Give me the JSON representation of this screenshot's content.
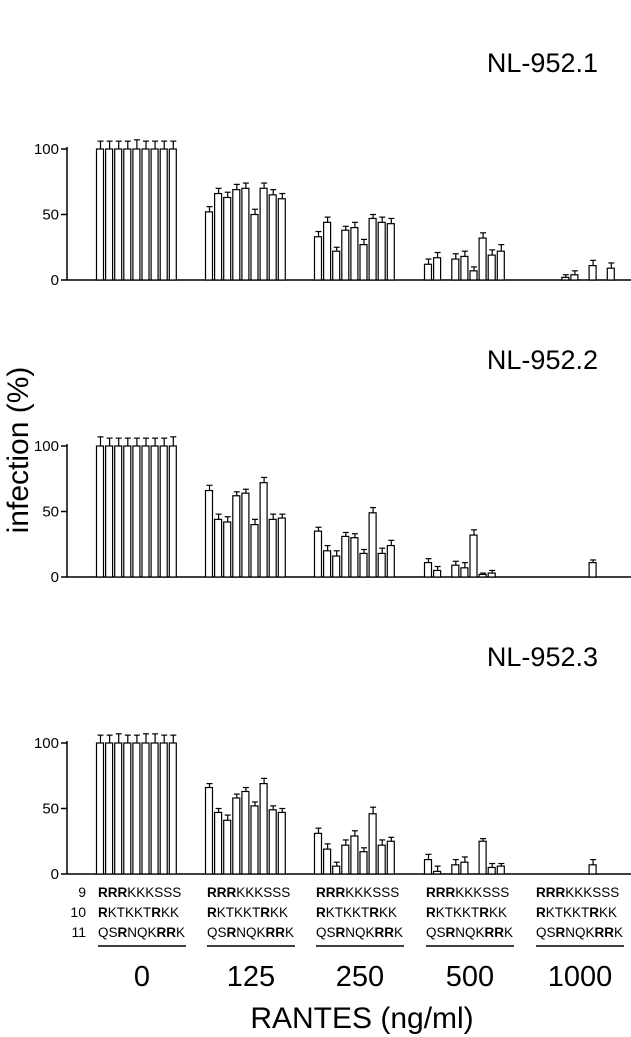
{
  "chart_data": {
    "type": "bar",
    "ylabel": "infection (%)",
    "xlabel": "RANTES (ng/ml)",
    "ylim": [
      0,
      100
    ],
    "yticks": [
      "0",
      "50",
      "100"
    ],
    "categories": [
      "0",
      "125",
      "250",
      "500",
      "1000"
    ],
    "bars_per_group": 9,
    "error_bars": true,
    "panels": [
      {
        "title": "NL-952.1",
        "values": [
          [
            100,
            100,
            100,
            100,
            100,
            100,
            100,
            100,
            100
          ],
          [
            52,
            66,
            63,
            69,
            70,
            50,
            70,
            65,
            62
          ],
          [
            33,
            44,
            22,
            38,
            40,
            27,
            47,
            44,
            43
          ],
          [
            12,
            17,
            0,
            16,
            18,
            7,
            32,
            19,
            22
          ],
          [
            0,
            0,
            0,
            2,
            4,
            0,
            11,
            0,
            9
          ]
        ],
        "errors": [
          [
            6,
            6,
            6,
            6,
            7,
            6,
            6,
            6,
            6
          ],
          [
            4,
            4,
            4,
            4,
            4,
            4,
            4,
            4,
            4
          ],
          [
            4,
            4,
            3,
            3,
            4,
            4,
            3,
            4,
            4
          ],
          [
            4,
            4,
            0,
            4,
            4,
            3,
            4,
            4,
            5
          ],
          [
            0,
            0,
            0,
            2,
            3,
            0,
            4,
            0,
            4
          ]
        ]
      },
      {
        "title": "NL-952.2",
        "values": [
          [
            100,
            100,
            100,
            100,
            100,
            100,
            100,
            100,
            100
          ],
          [
            66,
            44,
            42,
            62,
            64,
            40,
            72,
            44,
            45
          ],
          [
            35,
            20,
            16,
            31,
            30,
            18,
            49,
            18,
            24
          ],
          [
            11,
            5,
            0,
            9,
            7,
            32,
            2,
            3,
            0
          ],
          [
            0,
            0,
            0,
            0,
            0,
            0,
            11,
            0,
            0
          ]
        ],
        "errors": [
          [
            7,
            6,
            6,
            6,
            6,
            6,
            6,
            6,
            7
          ],
          [
            4,
            4,
            4,
            3,
            3,
            4,
            4,
            4,
            3
          ],
          [
            3,
            4,
            4,
            3,
            3,
            3,
            4,
            4,
            4
          ],
          [
            3,
            3,
            0,
            3,
            4,
            4,
            1,
            2,
            0
          ],
          [
            0,
            0,
            0,
            0,
            0,
            0,
            2,
            0,
            0
          ]
        ]
      },
      {
        "title": "NL-952.3",
        "values": [
          [
            100,
            100,
            100,
            100,
            100,
            100,
            100,
            100,
            100
          ],
          [
            66,
            47,
            41,
            58,
            63,
            52,
            69,
            49,
            47
          ],
          [
            31,
            19,
            6,
            22,
            29,
            17,
            46,
            22,
            25
          ],
          [
            11,
            2,
            0,
            7,
            9,
            0,
            25,
            5,
            6
          ],
          [
            0,
            0,
            0,
            0,
            0,
            0,
            7,
            0,
            0
          ]
        ],
        "errors": [
          [
            6,
            6,
            7,
            6,
            6,
            7,
            7,
            6,
            6
          ],
          [
            3,
            3,
            4,
            3,
            3,
            3,
            4,
            3,
            3
          ],
          [
            4,
            4,
            3,
            4,
            4,
            3,
            5,
            4,
            3
          ],
          [
            4,
            4,
            0,
            4,
            4,
            0,
            2,
            3,
            2
          ],
          [
            0,
            0,
            0,
            0,
            0,
            0,
            4,
            0,
            0
          ]
        ]
      }
    ],
    "sequence_rows": [
      {
        "number": "9",
        "segments": [
          {
            "text": "RRR",
            "bold": true
          },
          {
            "text": "KKKSSS",
            "bold": false
          }
        ]
      },
      {
        "number": "10",
        "segments": [
          {
            "text": "R",
            "bold": true
          },
          {
            "text": "KTKKT",
            "bold": false
          },
          {
            "text": "R",
            "bold": true
          },
          {
            "text": "KK",
            "bold": false
          }
        ]
      },
      {
        "number": "11",
        "segments": [
          {
            "text": "QS",
            "bold": false
          },
          {
            "text": "R",
            "bold": true
          },
          {
            "text": "NQK",
            "bold": false
          },
          {
            "text": "RR",
            "bold": true
          },
          {
            "text": "K",
            "bold": false
          }
        ]
      }
    ]
  }
}
